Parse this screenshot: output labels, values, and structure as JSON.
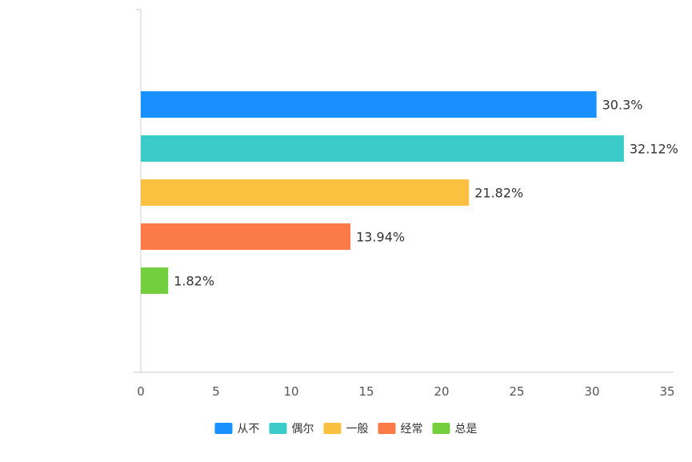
{
  "chart_data": {
    "type": "bar",
    "orientation": "horizontal",
    "categories": [
      "从不",
      "偶尔",
      "一般",
      "经常",
      "总是"
    ],
    "values": [
      30.3,
      32.12,
      21.82,
      13.94,
      1.82
    ],
    "value_labels": [
      "30.3%",
      "32.12%",
      "21.82%",
      "13.94%",
      "1.82%"
    ],
    "colors": [
      "#1890ff",
      "#3bcbc8",
      "#fac040",
      "#fb7a47",
      "#74cf3f"
    ],
    "xlim": [
      0,
      35
    ],
    "xticks": [
      0,
      5,
      10,
      15,
      20,
      25,
      30,
      35
    ],
    "grid": false,
    "legend_position": "bottom-center",
    "title": "",
    "xlabel": "",
    "ylabel": ""
  }
}
